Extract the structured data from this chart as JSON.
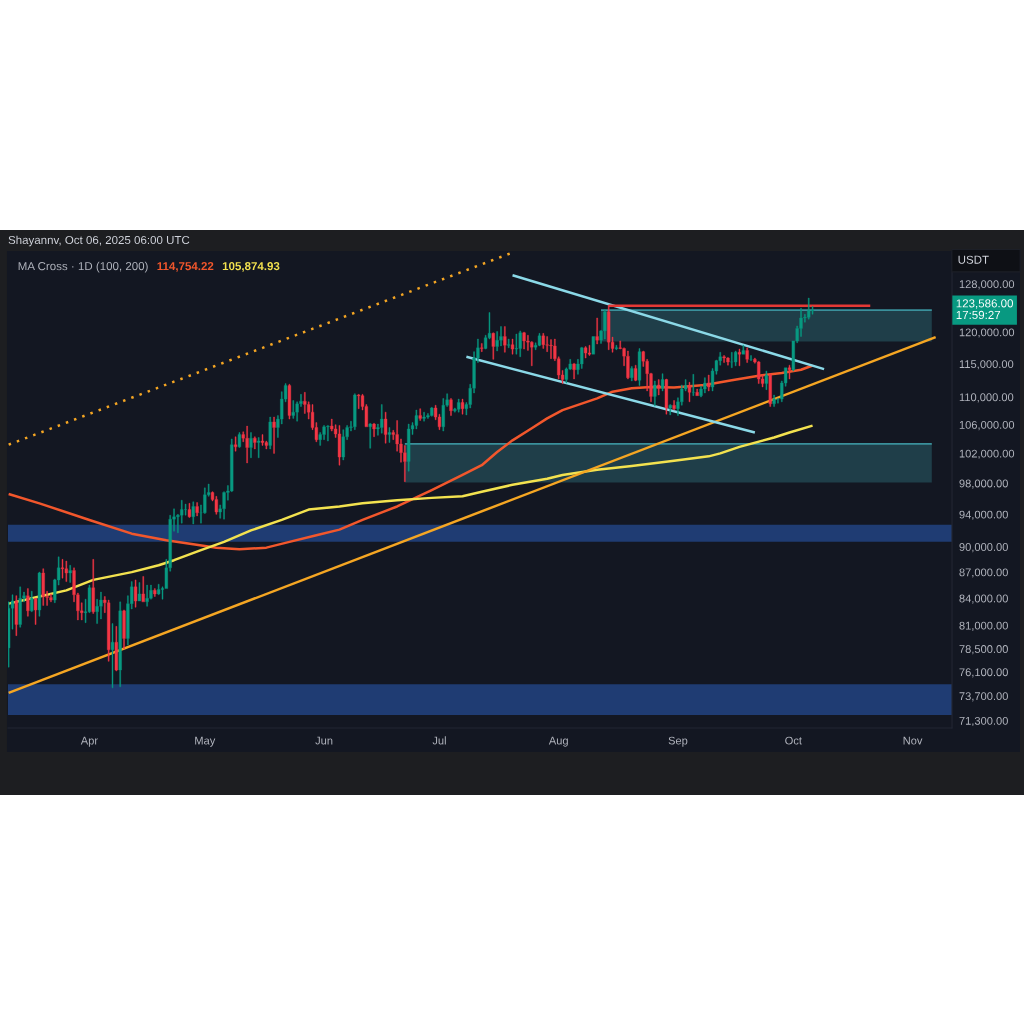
{
  "chart_data": {
    "type": "candlestick",
    "x": [
      "2025-03-11",
      "2025-03-12",
      "2025-03-13",
      "2025-03-14",
      "2025-03-15",
      "2025-03-16",
      "2025-03-17",
      "2025-03-18",
      "2025-03-19",
      "2025-03-20",
      "2025-03-21",
      "2025-03-22",
      "2025-03-23",
      "2025-03-24",
      "2025-03-25",
      "2025-03-26",
      "2025-03-27",
      "2025-03-28",
      "2025-03-29",
      "2025-03-30",
      "2025-03-31",
      "2025-04-01",
      "2025-04-02",
      "2025-04-03",
      "2025-04-04",
      "2025-04-05",
      "2025-04-06",
      "2025-04-07",
      "2025-04-08",
      "2025-04-09",
      "2025-04-10",
      "2025-04-11",
      "2025-04-12",
      "2025-04-13",
      "2025-04-14",
      "2025-04-15",
      "2025-04-16",
      "2025-04-17",
      "2025-04-18",
      "2025-04-19",
      "2025-04-20",
      "2025-04-21",
      "2025-04-22",
      "2025-04-23",
      "2025-04-24",
      "2025-04-25",
      "2025-04-26",
      "2025-04-27",
      "2025-04-28",
      "2025-04-29",
      "2025-04-30",
      "2025-05-01",
      "2025-05-02",
      "2025-05-03",
      "2025-05-04",
      "2025-05-05",
      "2025-05-06",
      "2025-05-07",
      "2025-05-08",
      "2025-05-09",
      "2025-05-10",
      "2025-05-11",
      "2025-05-12",
      "2025-05-13",
      "2025-05-14",
      "2025-05-15",
      "2025-05-16",
      "2025-05-17",
      "2025-05-18",
      "2025-05-19",
      "2025-05-20",
      "2025-05-21",
      "2025-05-22",
      "2025-05-23",
      "2025-05-24",
      "2025-05-25",
      "2025-05-26",
      "2025-05-27",
      "2025-05-28",
      "2025-05-29",
      "2025-05-30",
      "2025-05-31",
      "2025-06-01",
      "2025-06-02",
      "2025-06-03",
      "2025-06-04",
      "2025-06-05",
      "2025-06-06",
      "2025-06-07",
      "2025-06-08",
      "2025-06-09",
      "2025-06-10",
      "2025-06-11",
      "2025-06-12",
      "2025-06-13",
      "2025-06-14",
      "2025-06-15",
      "2025-06-16",
      "2025-06-17",
      "2025-06-18",
      "2025-06-19",
      "2025-06-20",
      "2025-06-21",
      "2025-06-22",
      "2025-06-23",
      "2025-06-24",
      "2025-06-25",
      "2025-06-26",
      "2025-06-27",
      "2025-06-28",
      "2025-06-29",
      "2025-06-30",
      "2025-07-01",
      "2025-07-02",
      "2025-07-03",
      "2025-07-04",
      "2025-07-05",
      "2025-07-06",
      "2025-07-07",
      "2025-07-08",
      "2025-07-09",
      "2025-07-10",
      "2025-07-11",
      "2025-07-12",
      "2025-07-13",
      "2025-07-14",
      "2025-07-15",
      "2025-07-16",
      "2025-07-17",
      "2025-07-18",
      "2025-07-19",
      "2025-07-20",
      "2025-07-21",
      "2025-07-22",
      "2025-07-23",
      "2025-07-24",
      "2025-07-25",
      "2025-07-26",
      "2025-07-27",
      "2025-07-28",
      "2025-07-29",
      "2025-07-30",
      "2025-07-31",
      "2025-08-01",
      "2025-08-02",
      "2025-08-03",
      "2025-08-04",
      "2025-08-05",
      "2025-08-06",
      "2025-08-07",
      "2025-08-08",
      "2025-08-09",
      "2025-08-10",
      "2025-08-11",
      "2025-08-12",
      "2025-08-13",
      "2025-08-14",
      "2025-08-15",
      "2025-08-16",
      "2025-08-17",
      "2025-08-18",
      "2025-08-19",
      "2025-08-20",
      "2025-08-21",
      "2025-08-22",
      "2025-08-23",
      "2025-08-24",
      "2025-08-25",
      "2025-08-26",
      "2025-08-27",
      "2025-08-28",
      "2025-08-29",
      "2025-08-30",
      "2025-08-31",
      "2025-09-01",
      "2025-09-02",
      "2025-09-03",
      "2025-09-04",
      "2025-09-05",
      "2025-09-06",
      "2025-09-07",
      "2025-09-08",
      "2025-09-09",
      "2025-09-10",
      "2025-09-11",
      "2025-09-12",
      "2025-09-13",
      "2025-09-14",
      "2025-09-15",
      "2025-09-16",
      "2025-09-17",
      "2025-09-18",
      "2025-09-19",
      "2025-09-20",
      "2025-09-21",
      "2025-09-22",
      "2025-09-23",
      "2025-09-24",
      "2025-09-25",
      "2025-09-26",
      "2025-09-27",
      "2025-09-28",
      "2025-09-29",
      "2025-09-30",
      "2025-10-01",
      "2025-10-02",
      "2025-10-03",
      "2025-10-04",
      "2025-10-05",
      "2025-10-06"
    ],
    "ohlc": [
      [
        78600,
        83600,
        76600,
        82900
      ],
      [
        82900,
        84400,
        80600,
        83700
      ],
      [
        83700,
        84300,
        79900,
        81100
      ],
      [
        81100,
        85300,
        80800,
        84000
      ],
      [
        84000,
        84700,
        83600,
        84300
      ],
      [
        84300,
        85100,
        82000,
        82600
      ],
      [
        82600,
        84800,
        82500,
        84000
      ],
      [
        84000,
        84000,
        81100,
        82700
      ],
      [
        82700,
        87000,
        82000,
        86900
      ],
      [
        86900,
        87400,
        83200,
        84200
      ],
      [
        84200,
        84800,
        83200,
        84100
      ],
      [
        84100,
        84500,
        83600,
        83800
      ],
      [
        83800,
        86200,
        83500,
        86100
      ],
      [
        86100,
        88800,
        85500,
        87500
      ],
      [
        87500,
        88500,
        86300,
        87400
      ],
      [
        87400,
        88300,
        85900,
        86900
      ],
      [
        86900,
        87800,
        85800,
        87200
      ],
      [
        87200,
        87500,
        83600,
        84400
      ],
      [
        84400,
        84600,
        81600,
        82600
      ],
      [
        82600,
        83500,
        81600,
        82400
      ],
      [
        82400,
        83900,
        81300,
        82500
      ],
      [
        82500,
        85500,
        82400,
        85200
      ],
      [
        85200,
        88500,
        82300,
        82500
      ],
      [
        82500,
        83900,
        81200,
        83100
      ],
      [
        83100,
        84700,
        81700,
        83800
      ],
      [
        83800,
        84200,
        82400,
        83500
      ],
      [
        83500,
        83800,
        77200,
        78400
      ],
      [
        78400,
        81200,
        74500,
        79200
      ],
      [
        79200,
        80900,
        76200,
        76300
      ],
      [
        76300,
        83600,
        74600,
        82600
      ],
      [
        82600,
        82700,
        78500,
        79600
      ],
      [
        79600,
        84300,
        78900,
        83400
      ],
      [
        83400,
        85900,
        82800,
        85300
      ],
      [
        85300,
        86100,
        83000,
        83700
      ],
      [
        83700,
        85800,
        83700,
        84500
      ],
      [
        84500,
        86500,
        83600,
        83600
      ],
      [
        83600,
        85500,
        83100,
        84000
      ],
      [
        84000,
        85500,
        83900,
        84900
      ],
      [
        84900,
        85100,
        84200,
        84500
      ],
      [
        84500,
        85600,
        84400,
        85000
      ],
      [
        85000,
        85300,
        83900,
        85100
      ],
      [
        85100,
        88500,
        85100,
        87500
      ],
      [
        87500,
        93900,
        87100,
        93400
      ],
      [
        93400,
        94700,
        91900,
        93700
      ],
      [
        93700,
        94000,
        91700,
        93900
      ],
      [
        93900,
        95800,
        92900,
        94600
      ],
      [
        94600,
        95300,
        93900,
        94600
      ],
      [
        94600,
        95400,
        93600,
        93700
      ],
      [
        93700,
        95600,
        92800,
        95000
      ],
      [
        95000,
        95500,
        93800,
        94200
      ],
      [
        94200,
        95200,
        92900,
        94200
      ],
      [
        94200,
        97400,
        94100,
        96500
      ],
      [
        96500,
        97900,
        96300,
        96800
      ],
      [
        96800,
        96900,
        95700,
        95900
      ],
      [
        95900,
        96300,
        94000,
        94300
      ],
      [
        94300,
        95200,
        93500,
        94700
      ],
      [
        94700,
        96900,
        93400,
        96800
      ],
      [
        96800,
        97700,
        95800,
        97000
      ],
      [
        97000,
        104000,
        96900,
        103200
      ],
      [
        103200,
        104300,
        102300,
        102900
      ],
      [
        102900,
        104900,
        102800,
        104600
      ],
      [
        104600,
        105000,
        103600,
        104100
      ],
      [
        104100,
        105800,
        100700,
        102800
      ],
      [
        102800,
        104900,
        101400,
        104100
      ],
      [
        104100,
        104300,
        102600,
        103500
      ],
      [
        103500,
        104200,
        101400,
        103700
      ],
      [
        103700,
        104600,
        103100,
        103500
      ],
      [
        103500,
        103700,
        102600,
        103100
      ],
      [
        103100,
        107100,
        102600,
        106400
      ],
      [
        106400,
        107100,
        102000,
        105600
      ],
      [
        105600,
        107300,
        104200,
        106800
      ],
      [
        106800,
        110800,
        106100,
        109700
      ],
      [
        109700,
        112000,
        109300,
        111700
      ],
      [
        111700,
        111900,
        106800,
        107300
      ],
      [
        107300,
        109500,
        106900,
        107800
      ],
      [
        107800,
        109300,
        106500,
        109000
      ],
      [
        109000,
        110400,
        108600,
        109400
      ],
      [
        109400,
        110700,
        107600,
        108900
      ],
      [
        108900,
        109300,
        106800,
        107800
      ],
      [
        107800,
        108900,
        105300,
        105600
      ],
      [
        105600,
        106300,
        103600,
        103900
      ],
      [
        103900,
        104900,
        103100,
        104600
      ],
      [
        104600,
        105900,
        103900,
        105700
      ],
      [
        105700,
        105900,
        103700,
        105800
      ],
      [
        105800,
        106800,
        105100,
        105400
      ],
      [
        105400,
        106000,
        104200,
        104700
      ],
      [
        104700,
        105900,
        100400,
        101500
      ],
      [
        101500,
        105300,
        101100,
        104300
      ],
      [
        104300,
        105900,
        103900,
        105600
      ],
      [
        105600,
        106500,
        105100,
        105700
      ],
      [
        105700,
        110500,
        105300,
        110300
      ],
      [
        110300,
        110400,
        108300,
        110200
      ],
      [
        110200,
        110400,
        108100,
        108600
      ],
      [
        108600,
        108900,
        105700,
        105700
      ],
      [
        105700,
        106200,
        102700,
        106100
      ],
      [
        106100,
        106200,
        104300,
        105400
      ],
      [
        105400,
        106100,
        104500,
        105600
      ],
      [
        105600,
        108900,
        104800,
        106800
      ],
      [
        106800,
        107800,
        103400,
        104600
      ],
      [
        104600,
        105600,
        103500,
        104900
      ],
      [
        104900,
        105200,
        103900,
        104600
      ],
      [
        104600,
        106600,
        102300,
        103300
      ],
      [
        103300,
        104000,
        100800,
        102100
      ],
      [
        102100,
        103100,
        98200,
        100900
      ],
      [
        100900,
        106100,
        99600,
        105400
      ],
      [
        105400,
        106300,
        104600,
        105900
      ],
      [
        105900,
        108100,
        105400,
        107300
      ],
      [
        107300,
        108300,
        106600,
        106900
      ],
      [
        106900,
        107800,
        106500,
        107100
      ],
      [
        107100,
        107600,
        106900,
        107300
      ],
      [
        107300,
        108500,
        107200,
        108400
      ],
      [
        108400,
        108800,
        106700,
        107100
      ],
      [
        107100,
        107500,
        105300,
        105700
      ],
      [
        105700,
        109800,
        105100,
        108800
      ],
      [
        108800,
        110500,
        108600,
        109600
      ],
      [
        109600,
        109800,
        107300,
        108000
      ],
      [
        108000,
        108400,
        107800,
        108200
      ],
      [
        108200,
        109700,
        107800,
        109200
      ],
      [
        109200,
        109700,
        107500,
        108300
      ],
      [
        108300,
        109200,
        107400,
        108900
      ],
      [
        108900,
        111900,
        108400,
        111300
      ],
      [
        111300,
        116900,
        110600,
        115900
      ],
      [
        115900,
        118900,
        115200,
        117500
      ],
      [
        117500,
        118200,
        116900,
        117400
      ],
      [
        117400,
        119500,
        117300,
        119100
      ],
      [
        119100,
        123200,
        118900,
        119800
      ],
      [
        119800,
        119900,
        115700,
        117700
      ],
      [
        117700,
        120100,
        117000,
        118700
      ],
      [
        118700,
        120900,
        117800,
        119300
      ],
      [
        119300,
        120900,
        116800,
        117900
      ],
      [
        117900,
        118900,
        117500,
        118000
      ],
      [
        118000,
        118900,
        116500,
        117300
      ],
      [
        117300,
        119700,
        116500,
        117400
      ],
      [
        117400,
        120200,
        116100,
        119900
      ],
      [
        119900,
        120000,
        117300,
        118600
      ],
      [
        118600,
        119500,
        117100,
        118400
      ],
      [
        118400,
        118500,
        114700,
        117600
      ],
      [
        117600,
        118300,
        117200,
        117900
      ],
      [
        117900,
        119800,
        117800,
        119400
      ],
      [
        119400,
        119800,
        117400,
        118000
      ],
      [
        118000,
        119300,
        116900,
        117900
      ],
      [
        117900,
        118800,
        115800,
        117800
      ],
      [
        117800,
        118900,
        115500,
        115800
      ],
      [
        115800,
        116100,
        112700,
        113300
      ],
      [
        113300,
        114000,
        112000,
        112600
      ],
      [
        112600,
        114400,
        112100,
        114200
      ],
      [
        114200,
        115700,
        114100,
        115000
      ],
      [
        115000,
        115100,
        112700,
        114100
      ],
      [
        114100,
        115700,
        113400,
        115000
      ],
      [
        115000,
        117600,
        114300,
        117500
      ],
      [
        117500,
        117700,
        115900,
        116700
      ],
      [
        116700,
        117900,
        116300,
        116500
      ],
      [
        116500,
        119300,
        116500,
        119300
      ],
      [
        119300,
        122300,
        118100,
        118700
      ],
      [
        118700,
        120300,
        118200,
        120200
      ],
      [
        120200,
        123700,
        118900,
        123300
      ],
      [
        123300,
        124400,
        117200,
        118400
      ],
      [
        118400,
        119200,
        116800,
        117400
      ],
      [
        117400,
        117900,
        117200,
        117500
      ],
      [
        117500,
        118600,
        117300,
        117400
      ],
      [
        117400,
        117500,
        114700,
        116200
      ],
      [
        116200,
        117000,
        112700,
        112900
      ],
      [
        112900,
        114600,
        112400,
        114300
      ],
      [
        114300,
        114800,
        112400,
        112500
      ],
      [
        112500,
        117400,
        111700,
        116900
      ],
      [
        116900,
        117000,
        114600,
        115400
      ],
      [
        115400,
        115700,
        110900,
        113500
      ],
      [
        113500,
        113600,
        109300,
        110100
      ],
      [
        110100,
        112400,
        108700,
        111800
      ],
      [
        111800,
        112600,
        110300,
        111300
      ],
      [
        111300,
        113500,
        110900,
        112600
      ],
      [
        112600,
        112700,
        107500,
        108400
      ],
      [
        108400,
        108900,
        107400,
        108800
      ],
      [
        108800,
        109500,
        108100,
        108300
      ],
      [
        108300,
        109900,
        107300,
        109300
      ],
      [
        109300,
        111800,
        108800,
        111200
      ],
      [
        111200,
        112600,
        110900,
        111700
      ],
      [
        111700,
        112200,
        109300,
        110700
      ],
      [
        110700,
        113400,
        110200,
        110700
      ],
      [
        110700,
        111200,
        110200,
        110200
      ],
      [
        110200,
        111600,
        110000,
        111200
      ],
      [
        111200,
        112900,
        110600,
        112100
      ],
      [
        112100,
        113300,
        110900,
        111500
      ],
      [
        111500,
        114300,
        110900,
        113900
      ],
      [
        113900,
        115600,
        113400,
        115500
      ],
      [
        115500,
        116800,
        114800,
        116100
      ],
      [
        116100,
        116300,
        115200,
        115900
      ],
      [
        115900,
        116000,
        114800,
        115300
      ],
      [
        115300,
        116800,
        114400,
        115300
      ],
      [
        115300,
        117000,
        114700,
        116800
      ],
      [
        116800,
        117300,
        114700,
        116500
      ],
      [
        116500,
        117900,
        116500,
        117100
      ],
      [
        117100,
        117500,
        115200,
        115700
      ],
      [
        115700,
        116300,
        115500,
        115700
      ],
      [
        115700,
        115900,
        115100,
        115300
      ],
      [
        115300,
        115400,
        112000,
        112700
      ],
      [
        112700,
        113300,
        111500,
        112000
      ],
      [
        112000,
        113900,
        111100,
        113300
      ],
      [
        113300,
        113500,
        108600,
        109000
      ],
      [
        109000,
        110300,
        108600,
        109700
      ],
      [
        109700,
        109800,
        109100,
        109700
      ],
      [
        109700,
        112400,
        109300,
        112100
      ],
      [
        112100,
        114400,
        111600,
        114400
      ],
      [
        114400,
        114800,
        112700,
        114100
      ],
      [
        114100,
        118600,
        113900,
        118600
      ],
      [
        118600,
        121000,
        118300,
        120600
      ],
      [
        120600,
        123900,
        119300,
        122300
      ],
      [
        122300,
        122900,
        121600,
        122400
      ],
      [
        122400,
        125600,
        122100,
        123500
      ],
      [
        123500,
        124200,
        122900,
        123586
      ]
    ],
    "series": [
      {
        "type": "line",
        "name": "114,754.22",
        "color": "#f2572c",
        "x": [
          "2025-03-11",
          "2025-03-19",
          "2025-04-01",
          "2025-04-12",
          "2025-04-21",
          "2025-04-28",
          "2025-05-04",
          "2025-05-10",
          "2025-05-17",
          "2025-05-23",
          "2025-05-30",
          "2025-06-05",
          "2025-06-11",
          "2025-06-20",
          "2025-06-29",
          "2025-07-07",
          "2025-07-12",
          "2025-07-16",
          "2025-07-20",
          "2025-07-25",
          "2025-07-29",
          "2025-08-02",
          "2025-08-11",
          "2025-08-15",
          "2025-08-20",
          "2025-08-25",
          "2025-08-31",
          "2025-09-08",
          "2025-09-15",
          "2025-09-22",
          "2025-09-28",
          "2025-10-03",
          "2025-10-06"
        ],
        "values": [
          96600,
          95400,
          93300,
          91600,
          90800,
          90300,
          89900,
          89700,
          89900,
          90600,
          91400,
          92100,
          93300,
          95000,
          97100,
          99100,
          100400,
          102200,
          103800,
          105500,
          106900,
          108100,
          109800,
          110800,
          111300,
          111500,
          111400,
          111800,
          112500,
          113200,
          113600,
          114100,
          114754.22
        ]
      },
      {
        "type": "line",
        "name": "105,874.93",
        "color": "#f3e24f",
        "x": [
          "2025-03-11",
          "2025-03-19",
          "2025-03-26",
          "2025-04-02",
          "2025-04-12",
          "2025-04-19",
          "2025-04-23",
          "2025-04-30",
          "2025-05-06",
          "2025-05-13",
          "2025-05-21",
          "2025-05-28",
          "2025-06-05",
          "2025-06-11",
          "2025-06-20",
          "2025-06-29",
          "2025-07-07",
          "2025-07-12",
          "2025-07-20",
          "2025-07-29",
          "2025-08-02",
          "2025-08-11",
          "2025-08-20",
          "2025-08-31",
          "2025-09-09",
          "2025-09-12",
          "2025-09-17",
          "2025-09-26",
          "2025-09-30",
          "2025-10-06"
        ],
        "values": [
          83400,
          84200,
          84900,
          86100,
          87000,
          87800,
          88400,
          89600,
          90600,
          92000,
          93300,
          94600,
          95000,
          95400,
          95800,
          96100,
          96300,
          96900,
          97800,
          98600,
          99100,
          99800,
          100300,
          101000,
          101600,
          102000,
          102900,
          104200,
          104900,
          105874.93
        ]
      },
      {
        "type": "line",
        "color": "#f5a623",
        "line_style": "dotted",
        "x": [
          "2025-03-11",
          "2025-07-20"
        ],
        "values": [
          103200,
          133500
        ]
      },
      {
        "type": "line",
        "color": "#f5a623",
        "x": [
          "2025-03-11",
          "2025-11-07"
        ],
        "values": [
          74000,
          119200
        ]
      },
      {
        "type": "line",
        "color": "#8bd9e8",
        "x": [
          "2025-07-20",
          "2025-10-09"
        ],
        "values": [
          129500,
          114200
        ]
      },
      {
        "type": "line",
        "color": "#8bd9e8",
        "x": [
          "2025-07-08",
          "2025-09-21"
        ],
        "values": [
          116100,
          104900
        ]
      },
      {
        "type": "line",
        "color": "#e53935",
        "x": [
          "2025-08-14",
          "2025-10-21"
        ],
        "values": [
          124300,
          124300
        ]
      },
      {
        "type": "line",
        "color": "#3a909b",
        "x": [
          "2025-08-12",
          "2025-11-06"
        ],
        "values": [
          123600,
          123600
        ],
        "lower": [
          118500,
          118500
        ],
        "upper": [
          123600,
          123600
        ]
      },
      {
        "type": "line",
        "color": "#3a909b",
        "x": [
          "2025-06-22",
          "2025-11-06"
        ],
        "values": [
          103300,
          103300
        ],
        "lower": [
          98100,
          98100
        ],
        "upper": [
          103300,
          103300
        ]
      }
    ],
    "bands": [
      {
        "axis": "y",
        "from": 90600,
        "to": 92700,
        "color": "#1f3c73"
      },
      {
        "axis": "y",
        "from": 71850,
        "to": 74860,
        "color": "#1f3c73"
      }
    ],
    "log": true,
    "xlim": [
      "2025-03-10T20:00",
      "2025-11-11T06:00"
    ],
    "xticks": [
      {
        "value": "2025-04-01",
        "label": "Apr"
      },
      {
        "value": "2025-05-01",
        "label": "May"
      },
      {
        "value": "2025-06-01",
        "label": "Jun"
      },
      {
        "value": "2025-07-01",
        "label": "Jul"
      },
      {
        "value": "2025-08-01",
        "label": "Aug"
      },
      {
        "value": "2025-09-01",
        "label": "Sep"
      },
      {
        "value": "2025-10-01",
        "label": "Oct"
      },
      {
        "value": "2025-11-01",
        "label": "Nov"
      }
    ],
    "ylim": [
      70600,
      133600
    ],
    "yticks": [
      {
        "value": 128000,
        "label": "128,000.00"
      },
      {
        "value": 120000,
        "label": "120,000.00"
      },
      {
        "value": 115000,
        "label": "115,000.00"
      },
      {
        "value": 110000,
        "label": "110,000.00"
      },
      {
        "value": 106000,
        "label": "106,000.00"
      },
      {
        "value": 102000,
        "label": "102,000.00"
      },
      {
        "value": 98000,
        "label": "98,000.00"
      },
      {
        "value": 94000,
        "label": "94,000.00"
      },
      {
        "value": 90000,
        "label": "90,000.00"
      },
      {
        "value": 87000,
        "label": "87,000.00"
      },
      {
        "value": 84000,
        "label": "84,000.00"
      },
      {
        "value": 81000,
        "label": "81,000.00"
      },
      {
        "value": 78500,
        "label": "78,500.00"
      },
      {
        "value": 76100,
        "label": "76,100.00"
      },
      {
        "value": 73700,
        "label": "73,700.00"
      },
      {
        "value": 71300,
        "label": "71,300.00"
      }
    ],
    "ylabel": "USDT",
    "legend_title": "MA Cross · 1D (100, 200)",
    "legend": "top left",
    "annotations": [
      "Shayannv, Oct 06, 2025 06:00 UTC",
      "123,586.00\n17:59:27"
    ]
  }
}
